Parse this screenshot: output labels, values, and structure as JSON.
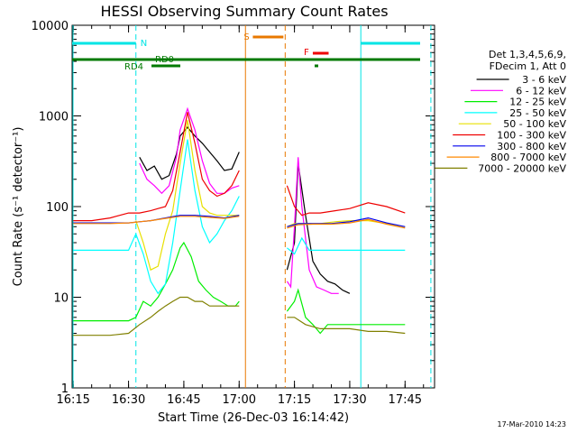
{
  "chart_data": {
    "type": "line",
    "title": "HESSI Observing Summary Count Rates",
    "xlabel": "Start Time (26-Dec-03 16:14:42)",
    "ylabel": "Count Rate (s⁻¹ detector⁻¹)",
    "y_scale": "log",
    "ylim": [
      1,
      10000
    ],
    "xlim": [
      "16:14:42",
      "17:53:00"
    ],
    "x_ticks": [
      "16:15",
      "16:30",
      "16:45",
      "17:00",
      "17:15",
      "17:30",
      "17:45"
    ],
    "y_ticks": [
      "1",
      "10",
      "100",
      "1000",
      "10000"
    ],
    "legend_header": [
      "Det 1,3,4,5,6,9,",
      "FDecim 1, Att 0"
    ],
    "footer": "17-Mar-2010 14:23",
    "annotations": {
      "N": {
        "label": "N",
        "color": "#00e5e5",
        "start": "16:15",
        "end": "16:32",
        "start2": "17:33",
        "end2": "17:52"
      },
      "S": {
        "label": "S",
        "color": "#e87800",
        "start": "17:02",
        "end": "17:12"
      },
      "F": {
        "label": "F",
        "color": "#ee0000",
        "start": "17:19",
        "end": "17:25"
      },
      "RD0": {
        "label": "RD0",
        "color": "#007a00"
      },
      "RD4": {
        "label": "RD4",
        "color": "#007a00"
      }
    },
    "series": [
      {
        "name": "3 - 6 keV",
        "color": "#000000",
        "points": [
          [
            "16:33",
            350
          ],
          [
            "16:35",
            250
          ],
          [
            "16:37",
            280
          ],
          [
            "16:39",
            200
          ],
          [
            "16:41",
            220
          ],
          [
            "16:43",
            380
          ],
          [
            "16:44",
            600
          ],
          [
            "16:46",
            750
          ],
          [
            "16:48",
            600
          ],
          [
            "16:50",
            500
          ],
          [
            "16:52",
            400
          ],
          [
            "16:54",
            320
          ],
          [
            "16:56",
            250
          ],
          [
            "16:58",
            260
          ],
          [
            "17:00",
            400
          ],
          [
            "17:13",
            20
          ],
          [
            "17:15",
            40
          ],
          [
            "17:16",
            300
          ],
          [
            "17:18",
            80
          ],
          [
            "17:20",
            25
          ],
          [
            "17:22",
            18
          ],
          [
            "17:24",
            15
          ],
          [
            "17:26",
            14
          ],
          [
            "17:28",
            12
          ],
          [
            "17:30",
            11
          ]
        ]
      },
      {
        "name": "6 - 12 keV",
        "color": "#ff00ff",
        "points": [
          [
            "16:33",
            300
          ],
          [
            "16:35",
            200
          ],
          [
            "16:37",
            170
          ],
          [
            "16:39",
            140
          ],
          [
            "16:41",
            170
          ],
          [
            "16:43",
            350
          ],
          [
            "16:44",
            700
          ],
          [
            "16:46",
            1200
          ],
          [
            "16:48",
            700
          ],
          [
            "16:50",
            320
          ],
          [
            "16:52",
            180
          ],
          [
            "16:54",
            140
          ],
          [
            "16:56",
            140
          ],
          [
            "16:58",
            160
          ],
          [
            "17:00",
            170
          ],
          [
            "17:13",
            15
          ],
          [
            "17:14",
            13
          ],
          [
            "17:15",
            60
          ],
          [
            "17:16",
            350
          ],
          [
            "17:17",
            100
          ],
          [
            "17:19",
            20
          ],
          [
            "17:21",
            13
          ],
          [
            "17:23",
            12
          ],
          [
            "17:25",
            11
          ],
          [
            "17:27",
            11
          ]
        ]
      },
      {
        "name": "12 - 25 keV",
        "color": "#00ee00",
        "points": [
          [
            "16:15",
            5.5
          ],
          [
            "16:20",
            5.5
          ],
          [
            "16:25",
            5.5
          ],
          [
            "16:30",
            5.5
          ],
          [
            "16:32",
            6
          ],
          [
            "16:34",
            9
          ],
          [
            "16:36",
            8
          ],
          [
            "16:38",
            10
          ],
          [
            "16:40",
            14
          ],
          [
            "16:42",
            20
          ],
          [
            "16:44",
            35
          ],
          [
            "16:45",
            40
          ],
          [
            "16:47",
            28
          ],
          [
            "16:49",
            15
          ],
          [
            "16:51",
            12
          ],
          [
            "16:53",
            10
          ],
          [
            "16:55",
            9
          ],
          [
            "16:57",
            8
          ],
          [
            "16:59",
            8
          ],
          [
            "17:00",
            9
          ],
          [
            "17:13",
            7
          ],
          [
            "17:15",
            9
          ],
          [
            "17:16",
            12
          ],
          [
            "17:18",
            6
          ],
          [
            "17:20",
            5
          ],
          [
            "17:22",
            4
          ],
          [
            "17:24",
            5
          ],
          [
            "17:26",
            5
          ],
          [
            "17:30",
            5
          ],
          [
            "17:35",
            5
          ],
          [
            "17:40",
            5
          ],
          [
            "17:45",
            5
          ],
          [
            "17:51",
            5
          ]
        ]
      },
      {
        "name": "25 - 50 keV",
        "color": "#00ffff",
        "points": [
          [
            "16:15",
            33
          ],
          [
            "16:20",
            33
          ],
          [
            "16:25",
            33
          ],
          [
            "16:30",
            33
          ],
          [
            "16:32",
            50
          ],
          [
            "16:34",
            30
          ],
          [
            "16:36",
            15
          ],
          [
            "16:38",
            11
          ],
          [
            "16:40",
            14
          ],
          [
            "16:42",
            40
          ],
          [
            "16:44",
            150
          ],
          [
            "16:46",
            550
          ],
          [
            "16:48",
            150
          ],
          [
            "16:50",
            60
          ],
          [
            "16:52",
            40
          ],
          [
            "16:54",
            50
          ],
          [
            "16:56",
            70
          ],
          [
            "16:58",
            90
          ],
          [
            "17:00",
            130
          ],
          [
            "17:13",
            35
          ],
          [
            "17:15",
            30
          ],
          [
            "17:17",
            45
          ],
          [
            "17:19",
            33
          ],
          [
            "17:22",
            33
          ],
          [
            "17:26",
            33
          ],
          [
            "17:30",
            33
          ],
          [
            "17:35",
            33
          ],
          [
            "17:40",
            33
          ],
          [
            "17:45",
            33
          ],
          [
            "17:51",
            33
          ]
        ]
      },
      {
        "name": "50 - 100 keV",
        "color": "#e8e000",
        "points": [
          [
            "16:32",
            70
          ],
          [
            "16:34",
            40
          ],
          [
            "16:36",
            20
          ],
          [
            "16:38",
            22
          ],
          [
            "16:40",
            50
          ],
          [
            "16:42",
            90
          ],
          [
            "16:44",
            300
          ],
          [
            "16:46",
            900
          ],
          [
            "16:48",
            250
          ],
          [
            "16:50",
            100
          ],
          [
            "16:52",
            85
          ],
          [
            "16:54",
            80
          ],
          [
            "16:56",
            80
          ],
          [
            "16:58",
            80
          ],
          [
            "17:00",
            80
          ],
          [
            "17:13",
            60
          ],
          [
            "17:15",
            65
          ],
          [
            "17:18",
            65
          ],
          [
            "17:22",
            65
          ],
          [
            "17:26",
            68
          ],
          [
            "17:30",
            70
          ],
          [
            "17:35",
            70
          ],
          [
            "17:40",
            65
          ],
          [
            "17:45",
            60
          ],
          [
            "17:51",
            55
          ]
        ]
      },
      {
        "name": "100 - 300 keV",
        "color": "#ee0000",
        "points": [
          [
            "16:15",
            70
          ],
          [
            "16:20",
            70
          ],
          [
            "16:25",
            75
          ],
          [
            "16:30",
            85
          ],
          [
            "16:33",
            85
          ],
          [
            "16:36",
            90
          ],
          [
            "16:38",
            95
          ],
          [
            "16:40",
            100
          ],
          [
            "16:42",
            150
          ],
          [
            "16:44",
            400
          ],
          [
            "16:46",
            1100
          ],
          [
            "16:48",
            500
          ],
          [
            "16:50",
            200
          ],
          [
            "16:52",
            150
          ],
          [
            "16:54",
            130
          ],
          [
            "16:56",
            140
          ],
          [
            "16:58",
            170
          ],
          [
            "17:00",
            250
          ],
          [
            "17:13",
            170
          ],
          [
            "17:15",
            100
          ],
          [
            "17:17",
            80
          ],
          [
            "17:19",
            85
          ],
          [
            "17:22",
            85
          ],
          [
            "17:26",
            90
          ],
          [
            "17:30",
            95
          ],
          [
            "17:35",
            110
          ],
          [
            "17:40",
            100
          ],
          [
            "17:45",
            85
          ],
          [
            "17:51",
            75
          ]
        ]
      },
      {
        "name": "300 - 800 keV",
        "color": "#0000ee",
        "points": [
          [
            "16:15",
            66
          ],
          [
            "16:20",
            66
          ],
          [
            "16:25",
            66
          ],
          [
            "16:30",
            66
          ],
          [
            "16:33",
            68
          ],
          [
            "16:36",
            70
          ],
          [
            "16:40",
            75
          ],
          [
            "16:44",
            80
          ],
          [
            "16:48",
            80
          ],
          [
            "16:52",
            78
          ],
          [
            "16:56",
            75
          ],
          [
            "17:00",
            80
          ],
          [
            "17:13",
            60
          ],
          [
            "17:16",
            65
          ],
          [
            "17:20",
            65
          ],
          [
            "17:25",
            65
          ],
          [
            "17:30",
            68
          ],
          [
            "17:35",
            75
          ],
          [
            "17:40",
            66
          ],
          [
            "17:45",
            60
          ],
          [
            "17:51",
            55
          ]
        ]
      },
      {
        "name": "800 - 7000 keV",
        "color": "#ff8800",
        "points": [
          [
            "16:15",
            65
          ],
          [
            "16:20",
            65
          ],
          [
            "16:25",
            65
          ],
          [
            "16:30",
            66
          ],
          [
            "16:33",
            68
          ],
          [
            "16:36",
            70
          ],
          [
            "16:40",
            74
          ],
          [
            "16:44",
            78
          ],
          [
            "16:48",
            78
          ],
          [
            "16:52",
            76
          ],
          [
            "16:56",
            74
          ],
          [
            "17:00",
            78
          ],
          [
            "17:13",
            58
          ],
          [
            "17:16",
            63
          ],
          [
            "17:20",
            64
          ],
          [
            "17:25",
            64
          ],
          [
            "17:30",
            66
          ],
          [
            "17:35",
            72
          ],
          [
            "17:40",
            64
          ],
          [
            "17:45",
            58
          ],
          [
            "17:51",
            52
          ]
        ]
      },
      {
        "name": "7000 - 20000 keV",
        "color": "#808000",
        "points": [
          [
            "16:15",
            3.8
          ],
          [
            "16:20",
            3.8
          ],
          [
            "16:25",
            3.8
          ],
          [
            "16:30",
            4.0
          ],
          [
            "16:33",
            5
          ],
          [
            "16:36",
            6
          ],
          [
            "16:38",
            7
          ],
          [
            "16:40",
            8
          ],
          [
            "16:42",
            9
          ],
          [
            "16:44",
            10
          ],
          [
            "16:46",
            10
          ],
          [
            "16:48",
            9
          ],
          [
            "16:50",
            9
          ],
          [
            "16:52",
            8
          ],
          [
            "16:54",
            8
          ],
          [
            "16:56",
            8
          ],
          [
            "16:58",
            8
          ],
          [
            "17:00",
            8
          ],
          [
            "17:13",
            6
          ],
          [
            "17:15",
            6
          ],
          [
            "17:18",
            5
          ],
          [
            "17:22",
            4.5
          ],
          [
            "17:26",
            4.5
          ],
          [
            "17:30",
            4.5
          ],
          [
            "17:35",
            4.2
          ],
          [
            "17:40",
            4.2
          ],
          [
            "17:45",
            4.0
          ],
          [
            "17:51",
            4.0
          ]
        ]
      }
    ]
  }
}
